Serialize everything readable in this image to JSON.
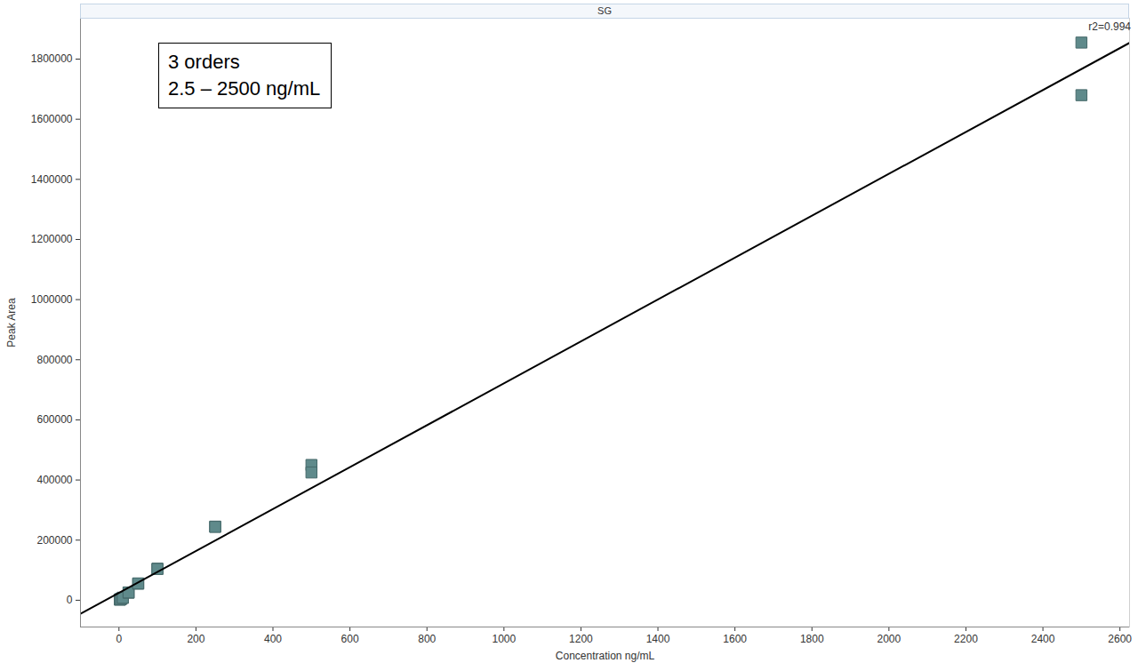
{
  "chart_data": {
    "type": "scatter",
    "title": "SG",
    "x_label": "Concentration ng/mL",
    "y_label": "Peak Area",
    "annotations": [
      "3 orders",
      "2.5 – 2500 ng/mL"
    ],
    "fit_label": "r2=0.994",
    "series": [
      {
        "type": "scatter",
        "marker": "square",
        "color": "#5f8a8b",
        "x": [
          2.5,
          2.5,
          5,
          5,
          10,
          10,
          25,
          25,
          50,
          50,
          100,
          100,
          250,
          250,
          500,
          500,
          2500,
          2500
        ],
        "values": [
          2000,
          2200,
          4000,
          4300,
          8000,
          8500,
          25000,
          26000,
          55000,
          56000,
          105000,
          104000,
          245000,
          244000,
          450000,
          425000,
          1855000,
          1680000
        ]
      },
      {
        "type": "line",
        "line_style": "solid",
        "color": "#000000",
        "x": [
          -100,
          2625
        ],
        "values": [
          -45000,
          1854000
        ]
      }
    ],
    "xlim": [
      -100,
      2625
    ],
    "ylim": [
      -89000,
      1936000
    ],
    "xticks": [
      0,
      200,
      400,
      600,
      800,
      1000,
      1200,
      1400,
      1600,
      1800,
      2000,
      2200,
      2400,
      2600
    ],
    "yticks": [
      0,
      200000,
      400000,
      600000,
      800000,
      1000000,
      1200000,
      1400000,
      1600000,
      1800000
    ],
    "grid": false
  }
}
